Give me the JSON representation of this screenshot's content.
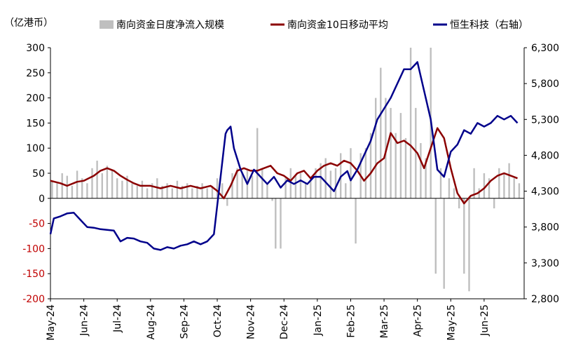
{
  "chart_data": {
    "type": "bar+line",
    "unit_label": "（亿港币）",
    "legend": [
      {
        "label": "南向资金日度净流入规模",
        "color": "#bfbfbf",
        "kind": "bar"
      },
      {
        "label": "南向资金10日移动平均",
        "color": "#8b0000",
        "kind": "line"
      },
      {
        "label": "恒生科技（右轴）",
        "color": "#00008b",
        "kind": "line"
      }
    ],
    "colors": {
      "bar": "#bfbfbf",
      "ma": "#8b0000",
      "hstech": "#00008b",
      "negative_tick": "#c00000",
      "axis": "#000000"
    },
    "y_left": {
      "min": -200,
      "max": 300,
      "ticks": [
        "300",
        "250",
        "200",
        "150",
        "100",
        "50",
        "0",
        "-50",
        "-100",
        "-150",
        "-200"
      ]
    },
    "y_right": {
      "min": 2800,
      "max": 6300,
      "ticks": [
        "6,300",
        "5,800",
        "5,300",
        "4,800",
        "4,300",
        "3,800",
        "3,300",
        "2,800"
      ]
    },
    "x_tick_labels": [
      "May-24",
      "Jun-24",
      "Jul-24",
      "Aug-24",
      "Sep-24",
      "Oct-24",
      "Nov-24",
      "Dec-24",
      "Jan-25",
      "Feb-25",
      "Mar-25",
      "Apr-25",
      "May-25",
      "Jun-25"
    ],
    "x_range_months": [
      0,
      14.2
    ],
    "daily_bars": [
      [
        0.05,
        35
      ],
      [
        0.2,
        30
      ],
      [
        0.35,
        50
      ],
      [
        0.5,
        45
      ],
      [
        0.65,
        25
      ],
      [
        0.8,
        55
      ],
      [
        0.95,
        40
      ],
      [
        1.1,
        30
      ],
      [
        1.25,
        60
      ],
      [
        1.4,
        75
      ],
      [
        1.55,
        50
      ],
      [
        1.7,
        65
      ],
      [
        1.85,
        55
      ],
      [
        2.0,
        40
      ],
      [
        2.15,
        35
      ],
      [
        2.3,
        45
      ],
      [
        2.45,
        30
      ],
      [
        2.6,
        25
      ],
      [
        2.75,
        35
      ],
      [
        2.9,
        20
      ],
      [
        3.05,
        30
      ],
      [
        3.2,
        40
      ],
      [
        3.35,
        25
      ],
      [
        3.5,
        30
      ],
      [
        3.65,
        20
      ],
      [
        3.8,
        35
      ],
      [
        3.95,
        25
      ],
      [
        4.1,
        30
      ],
      [
        4.25,
        20
      ],
      [
        4.4,
        25
      ],
      [
        4.55,
        30
      ],
      [
        4.7,
        20
      ],
      [
        4.85,
        25
      ],
      [
        5.0,
        40
      ],
      [
        5.15,
        30
      ],
      [
        5.3,
        -15
      ],
      [
        5.45,
        50
      ],
      [
        5.6,
        60
      ],
      [
        5.75,
        50
      ],
      [
        5.9,
        55
      ],
      [
        6.05,
        45
      ],
      [
        6.2,
        140
      ],
      [
        6.35,
        60
      ],
      [
        6.5,
        30
      ],
      [
        6.65,
        -5
      ],
      [
        6.75,
        -100
      ],
      [
        6.9,
        -100
      ],
      [
        7.05,
        40
      ],
      [
        7.2,
        60
      ],
      [
        7.35,
        45
      ],
      [
        7.5,
        50
      ],
      [
        7.65,
        30
      ],
      [
        7.8,
        40
      ],
      [
        7.95,
        60
      ],
      [
        8.1,
        70
      ],
      [
        8.25,
        80
      ],
      [
        8.4,
        55
      ],
      [
        8.55,
        60
      ],
      [
        8.7,
        90
      ],
      [
        8.85,
        30
      ],
      [
        9.0,
        100
      ],
      [
        9.15,
        -90
      ],
      [
        9.3,
        90
      ],
      [
        9.45,
        100
      ],
      [
        9.6,
        130
      ],
      [
        9.75,
        200
      ],
      [
        9.9,
        260
      ],
      [
        10.05,
        200
      ],
      [
        10.2,
        180
      ],
      [
        10.35,
        130
      ],
      [
        10.5,
        170
      ],
      [
        10.65,
        120
      ],
      [
        10.8,
        300
      ],
      [
        10.95,
        180
      ],
      [
        11.1,
        110
      ],
      [
        11.25,
        80
      ],
      [
        11.4,
        300
      ],
      [
        11.55,
        -150
      ],
      [
        11.7,
        60
      ],
      [
        11.8,
        -180
      ],
      [
        11.95,
        40
      ],
      [
        12.1,
        20
      ],
      [
        12.25,
        -20
      ],
      [
        12.4,
        -150
      ],
      [
        12.55,
        -185
      ],
      [
        12.7,
        60
      ],
      [
        12.85,
        20
      ],
      [
        13.0,
        50
      ],
      [
        13.15,
        40
      ],
      [
        13.3,
        -20
      ],
      [
        13.45,
        60
      ],
      [
        13.6,
        50
      ],
      [
        13.75,
        70
      ],
      [
        13.9,
        40
      ],
      [
        14.05,
        30
      ]
    ],
    "ma10_series": [
      [
        0,
        35
      ],
      [
        0.3,
        30
      ],
      [
        0.5,
        25
      ],
      [
        0.8,
        33
      ],
      [
        1.0,
        35
      ],
      [
        1.3,
        45
      ],
      [
        1.5,
        55
      ],
      [
        1.7,
        60
      ],
      [
        1.9,
        55
      ],
      [
        2.1,
        45
      ],
      [
        2.3,
        37
      ],
      [
        2.5,
        30
      ],
      [
        2.7,
        25
      ],
      [
        3.0,
        25
      ],
      [
        3.3,
        20
      ],
      [
        3.6,
        25
      ],
      [
        3.9,
        20
      ],
      [
        4.2,
        25
      ],
      [
        4.5,
        20
      ],
      [
        4.8,
        25
      ],
      [
        5.0,
        15
      ],
      [
        5.2,
        0
      ],
      [
        5.4,
        25
      ],
      [
        5.6,
        55
      ],
      [
        5.8,
        60
      ],
      [
        6.0,
        55
      ],
      [
        6.2,
        55
      ],
      [
        6.4,
        60
      ],
      [
        6.6,
        65
      ],
      [
        6.8,
        50
      ],
      [
        7.0,
        45
      ],
      [
        7.2,
        35
      ],
      [
        7.4,
        50
      ],
      [
        7.6,
        55
      ],
      [
        7.8,
        40
      ],
      [
        8.0,
        55
      ],
      [
        8.2,
        65
      ],
      [
        8.4,
        70
      ],
      [
        8.6,
        65
      ],
      [
        8.8,
        75
      ],
      [
        9.0,
        70
      ],
      [
        9.2,
        55
      ],
      [
        9.4,
        35
      ],
      [
        9.6,
        50
      ],
      [
        9.8,
        70
      ],
      [
        10.0,
        80
      ],
      [
        10.2,
        130
      ],
      [
        10.4,
        110
      ],
      [
        10.6,
        115
      ],
      [
        10.8,
        105
      ],
      [
        11.0,
        90
      ],
      [
        11.2,
        60
      ],
      [
        11.4,
        100
      ],
      [
        11.6,
        140
      ],
      [
        11.8,
        120
      ],
      [
        12.0,
        60
      ],
      [
        12.2,
        10
      ],
      [
        12.4,
        -10
      ],
      [
        12.6,
        5
      ],
      [
        12.8,
        10
      ],
      [
        13.0,
        20
      ],
      [
        13.2,
        35
      ],
      [
        13.4,
        45
      ],
      [
        13.6,
        50
      ],
      [
        13.8,
        45
      ],
      [
        14.0,
        40
      ]
    ],
    "hstech_series": [
      [
        0,
        3700
      ],
      [
        0.1,
        3920
      ],
      [
        0.3,
        3950
      ],
      [
        0.5,
        3990
      ],
      [
        0.7,
        4000
      ],
      [
        0.9,
        3900
      ],
      [
        1.1,
        3800
      ],
      [
        1.3,
        3790
      ],
      [
        1.5,
        3770
      ],
      [
        1.7,
        3760
      ],
      [
        1.9,
        3750
      ],
      [
        2.1,
        3600
      ],
      [
        2.3,
        3650
      ],
      [
        2.5,
        3640
      ],
      [
        2.7,
        3600
      ],
      [
        2.9,
        3580
      ],
      [
        3.1,
        3500
      ],
      [
        3.3,
        3480
      ],
      [
        3.5,
        3520
      ],
      [
        3.7,
        3500
      ],
      [
        3.9,
        3540
      ],
      [
        4.1,
        3560
      ],
      [
        4.3,
        3600
      ],
      [
        4.5,
        3560
      ],
      [
        4.7,
        3600
      ],
      [
        4.9,
        3700
      ],
      [
        5.0,
        4100
      ],
      [
        5.1,
        4500
      ],
      [
        5.2,
        4900
      ],
      [
        5.25,
        5100
      ],
      [
        5.3,
        5150
      ],
      [
        5.4,
        5200
      ],
      [
        5.5,
        4900
      ],
      [
        5.7,
        4600
      ],
      [
        5.9,
        4400
      ],
      [
        6.1,
        4600
      ],
      [
        6.3,
        4500
      ],
      [
        6.5,
        4400
      ],
      [
        6.7,
        4500
      ],
      [
        6.9,
        4350
      ],
      [
        7.1,
        4450
      ],
      [
        7.3,
        4400
      ],
      [
        7.5,
        4450
      ],
      [
        7.7,
        4400
      ],
      [
        7.9,
        4500
      ],
      [
        8.1,
        4500
      ],
      [
        8.3,
        4400
      ],
      [
        8.5,
        4300
      ],
      [
        8.7,
        4500
      ],
      [
        8.9,
        4580
      ],
      [
        9.0,
        4450
      ],
      [
        9.2,
        4600
      ],
      [
        9.4,
        4800
      ],
      [
        9.6,
        5000
      ],
      [
        9.8,
        5300
      ],
      [
        10.0,
        5450
      ],
      [
        10.2,
        5600
      ],
      [
        10.4,
        5800
      ],
      [
        10.6,
        6000
      ],
      [
        10.8,
        6000
      ],
      [
        11.0,
        6100
      ],
      [
        11.2,
        5700
      ],
      [
        11.4,
        5300
      ],
      [
        11.6,
        4600
      ],
      [
        11.8,
        4500
      ],
      [
        12.0,
        4850
      ],
      [
        12.2,
        4950
      ],
      [
        12.4,
        5150
      ],
      [
        12.6,
        5100
      ],
      [
        12.8,
        5250
      ],
      [
        13.0,
        5200
      ],
      [
        13.2,
        5250
      ],
      [
        13.4,
        5350
      ],
      [
        13.6,
        5300
      ],
      [
        13.8,
        5350
      ],
      [
        14.0,
        5250
      ]
    ]
  }
}
